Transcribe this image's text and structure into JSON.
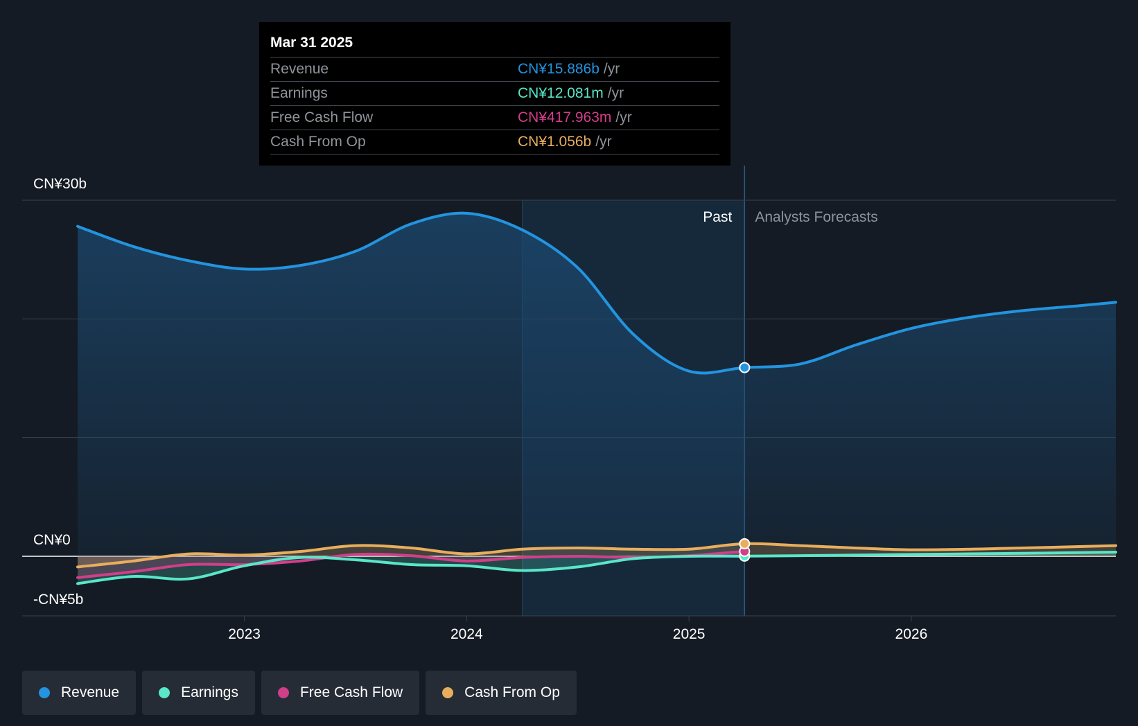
{
  "colors": {
    "background": "#151b24",
    "revenue": "#2394df",
    "earnings": "#59e6c9",
    "free_cash_flow": "#d03f8a",
    "cash_from_op": "#e8ae5d",
    "grid": "#3a414b",
    "past_shade": "#17354f"
  },
  "tooltip": {
    "date": "Mar 31 2025",
    "rows": [
      {
        "label": "Revenue",
        "value": "CN¥15.886b",
        "unit": "/yr",
        "color": "#2394df"
      },
      {
        "label": "Earnings",
        "value": "CN¥12.081m",
        "unit": "/yr",
        "color": "#59e6c9"
      },
      {
        "label": "Free Cash Flow",
        "value": "CN¥417.963m",
        "unit": "/yr",
        "color": "#d03f8a"
      },
      {
        "label": "Cash From Op",
        "value": "CN¥1.056b",
        "unit": "/yr",
        "color": "#e8ae5d"
      }
    ]
  },
  "chart_data": {
    "type": "line",
    "y_tick_labels": [
      "CN¥30b",
      "CN¥0",
      "-CN¥5b"
    ],
    "ylim": [
      -5,
      30
    ],
    "xlim": [
      2022.2,
      2026.92
    ],
    "x_ticks": [
      {
        "value": 2023,
        "label": "2023"
      },
      {
        "value": 2024,
        "label": "2024"
      },
      {
        "value": 2025,
        "label": "2025"
      },
      {
        "value": 2026,
        "label": "2026"
      }
    ],
    "divider_x": 2025.25,
    "highlight_start_x": 2024.25,
    "past_label": "Past",
    "forecast_label": "Analysts Forecasts",
    "legend_placement": "bottom-left",
    "series": [
      {
        "name": "Revenue",
        "color": "#2394df",
        "points": [
          [
            2022.25,
            27.8
          ],
          [
            2022.5,
            26.1
          ],
          [
            2022.75,
            24.9
          ],
          [
            2023.0,
            24.2
          ],
          [
            2023.25,
            24.5
          ],
          [
            2023.5,
            25.7
          ],
          [
            2023.75,
            28.0
          ],
          [
            2024.0,
            28.9
          ],
          [
            2024.25,
            27.5
          ],
          [
            2024.5,
            24.3
          ],
          [
            2024.75,
            18.7
          ],
          [
            2025.0,
            15.6
          ],
          [
            2025.25,
            15.9
          ],
          [
            2025.5,
            16.2
          ],
          [
            2025.75,
            17.8
          ],
          [
            2026.0,
            19.2
          ],
          [
            2026.25,
            20.1
          ],
          [
            2026.5,
            20.7
          ],
          [
            2026.75,
            21.1
          ],
          [
            2026.92,
            21.4
          ]
        ]
      },
      {
        "name": "Earnings",
        "color": "#59e6c9",
        "points": [
          [
            2022.25,
            -2.3
          ],
          [
            2022.5,
            -1.7
          ],
          [
            2022.75,
            -1.9
          ],
          [
            2023.0,
            -0.8
          ],
          [
            2023.25,
            -0.1
          ],
          [
            2023.5,
            -0.3
          ],
          [
            2023.75,
            -0.7
          ],
          [
            2024.0,
            -0.8
          ],
          [
            2024.25,
            -1.2
          ],
          [
            2024.5,
            -0.9
          ],
          [
            2024.75,
            -0.2
          ],
          [
            2025.0,
            0.0
          ],
          [
            2025.25,
            0.012
          ],
          [
            2025.5,
            0.05
          ],
          [
            2026.0,
            0.15
          ],
          [
            2026.5,
            0.25
          ],
          [
            2026.92,
            0.35
          ]
        ]
      },
      {
        "name": "Free Cash Flow",
        "color": "#d03f8a",
        "points": [
          [
            2022.25,
            -1.8
          ],
          [
            2022.5,
            -1.3
          ],
          [
            2022.75,
            -0.7
          ],
          [
            2023.0,
            -0.7
          ],
          [
            2023.25,
            -0.4
          ],
          [
            2023.5,
            0.15
          ],
          [
            2023.75,
            0.05
          ],
          [
            2024.0,
            -0.4
          ],
          [
            2024.25,
            -0.1
          ],
          [
            2024.5,
            0.0
          ],
          [
            2024.75,
            -0.1
          ],
          [
            2025.0,
            0.05
          ],
          [
            2025.25,
            0.418
          ]
        ]
      },
      {
        "name": "Cash From Op",
        "color": "#e8ae5d",
        "points": [
          [
            2022.25,
            -0.9
          ],
          [
            2022.5,
            -0.4
          ],
          [
            2022.75,
            0.2
          ],
          [
            2023.0,
            0.1
          ],
          [
            2023.25,
            0.4
          ],
          [
            2023.5,
            0.9
          ],
          [
            2023.75,
            0.7
          ],
          [
            2024.0,
            0.2
          ],
          [
            2024.25,
            0.6
          ],
          [
            2024.5,
            0.7
          ],
          [
            2024.75,
            0.6
          ],
          [
            2025.0,
            0.6
          ],
          [
            2025.25,
            1.056
          ],
          [
            2025.5,
            0.9
          ],
          [
            2026.0,
            0.55
          ],
          [
            2026.5,
            0.7
          ],
          [
            2026.92,
            0.9
          ]
        ]
      }
    ]
  },
  "legend": [
    {
      "label": "Revenue",
      "color": "#2394df"
    },
    {
      "label": "Earnings",
      "color": "#59e6c9"
    },
    {
      "label": "Free Cash Flow",
      "color": "#d03f8a"
    },
    {
      "label": "Cash From Op",
      "color": "#e8ae5d"
    }
  ]
}
